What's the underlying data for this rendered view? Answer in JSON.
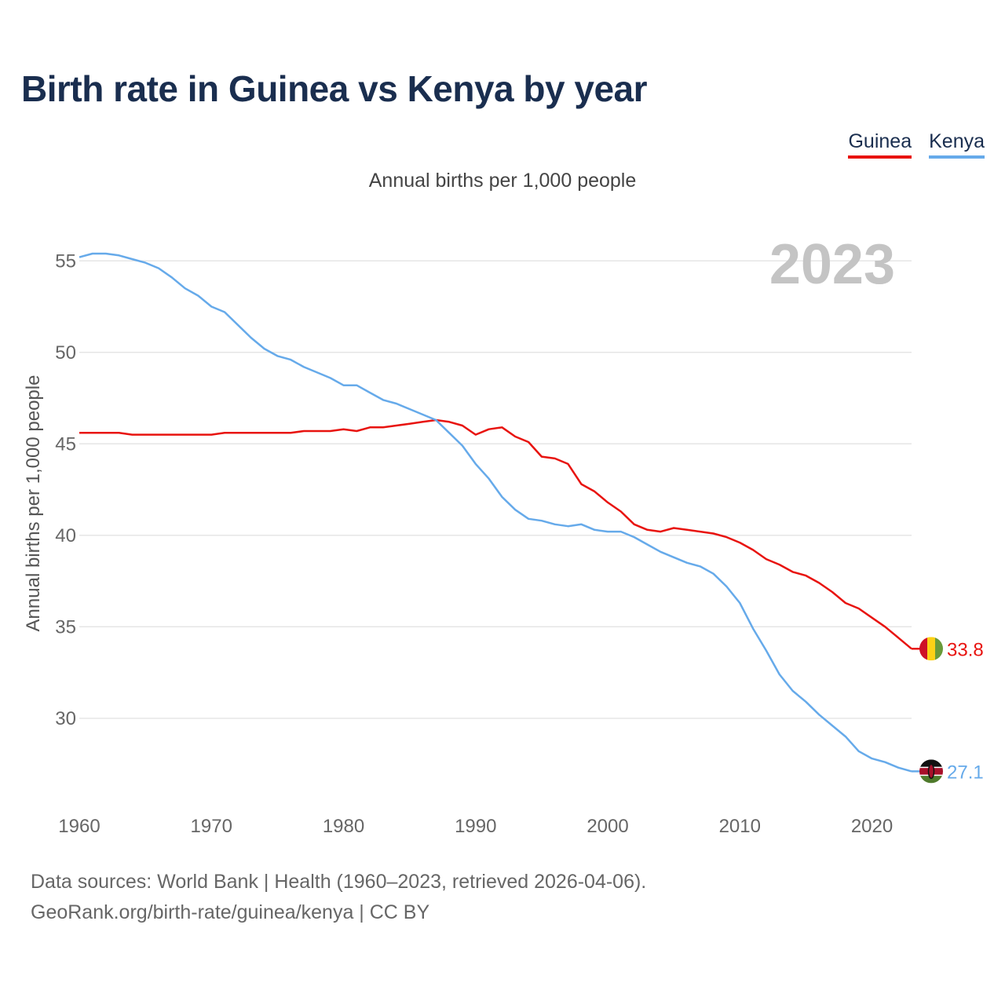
{
  "title": "Birth rate in Guinea vs Kenya by year",
  "subtitle": "Annual births per 1,000 people",
  "footer": {
    "line1": "Data sources: World Bank | Health (1960–2023, retrieved 2026-04-06).",
    "line2": "GeoRank.org/birth-rate/guinea/kenya | CC BY"
  },
  "colors": {
    "guinea": "#e8130f",
    "kenya": "#66aaea"
  },
  "chart_data": {
    "type": "line",
    "title": "Birth rate in Guinea vs Kenya by year",
    "ylabel": "Annual births per 1,000 people",
    "xlabel": "",
    "watermark_year": "2023",
    "xlim": [
      1960,
      2023
    ],
    "ylim": [
      25.4,
      56.6
    ],
    "yticks": [
      30,
      35,
      40,
      45,
      50,
      55
    ],
    "xticks": [
      1960,
      1970,
      1980,
      1990,
      2000,
      2010,
      2020
    ],
    "grid": true,
    "legend_position": "top-right",
    "x": [
      1960,
      1961,
      1962,
      1963,
      1964,
      1965,
      1966,
      1967,
      1968,
      1969,
      1970,
      1971,
      1972,
      1973,
      1974,
      1975,
      1976,
      1977,
      1978,
      1979,
      1980,
      1981,
      1982,
      1983,
      1984,
      1985,
      1986,
      1987,
      1988,
      1989,
      1990,
      1991,
      1992,
      1993,
      1994,
      1995,
      1996,
      1997,
      1998,
      1999,
      2000,
      2001,
      2002,
      2003,
      2004,
      2005,
      2006,
      2007,
      2008,
      2009,
      2010,
      2011,
      2012,
      2013,
      2014,
      2015,
      2016,
      2017,
      2018,
      2019,
      2020,
      2021,
      2022,
      2023
    ],
    "series": [
      {
        "name": "Guinea",
        "end_label": "33.8",
        "values": [
          45.6,
          45.6,
          45.6,
          45.6,
          45.5,
          45.5,
          45.5,
          45.5,
          45.5,
          45.5,
          45.5,
          45.6,
          45.6,
          45.6,
          45.6,
          45.6,
          45.6,
          45.7,
          45.7,
          45.7,
          45.8,
          45.7,
          45.9,
          45.9,
          46.0,
          46.1,
          46.2,
          46.3,
          46.2,
          46.0,
          45.5,
          45.8,
          45.9,
          45.4,
          45.1,
          44.3,
          44.2,
          43.9,
          42.8,
          42.4,
          41.8,
          41.3,
          40.6,
          40.3,
          40.2,
          40.4,
          40.3,
          40.2,
          40.1,
          39.9,
          39.6,
          39.2,
          38.7,
          38.4,
          38.0,
          37.8,
          37.4,
          36.9,
          36.3,
          36.0,
          35.5,
          35.0,
          34.4,
          33.8
        ]
      },
      {
        "name": "Kenya",
        "end_label": "27.1",
        "values": [
          55.2,
          55.4,
          55.4,
          55.3,
          55.1,
          54.9,
          54.6,
          54.1,
          53.5,
          53.1,
          52.5,
          52.2,
          51.5,
          50.8,
          50.2,
          49.8,
          49.6,
          49.2,
          48.9,
          48.6,
          48.2,
          48.2,
          47.8,
          47.4,
          47.2,
          46.9,
          46.6,
          46.3,
          45.6,
          44.9,
          43.9,
          43.1,
          42.1,
          41.4,
          40.9,
          40.8,
          40.6,
          40.5,
          40.6,
          40.3,
          40.2,
          40.2,
          39.9,
          39.5,
          39.1,
          38.8,
          38.5,
          38.3,
          37.9,
          37.2,
          36.3,
          34.9,
          33.7,
          32.4,
          31.5,
          30.9,
          30.2,
          29.6,
          29.0,
          28.2,
          27.8,
          27.6,
          27.3,
          27.1
        ]
      }
    ]
  }
}
